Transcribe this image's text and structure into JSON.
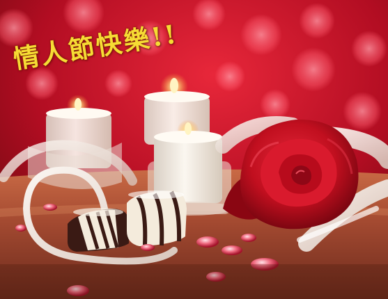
{
  "greeting": {
    "text": "情人節快樂!!",
    "color": "#f6dc34"
  },
  "scene": {
    "background_color": "#c8102e",
    "table_color": "#b55a3a",
    "rose_color": "#c40f1f",
    "candle_color": "#f7f1e6",
    "ribbon_color": "#f3ece6",
    "chocolate_cream_color": "#f4ebdc",
    "chocolate_stripe_color": "#3a1a14"
  }
}
